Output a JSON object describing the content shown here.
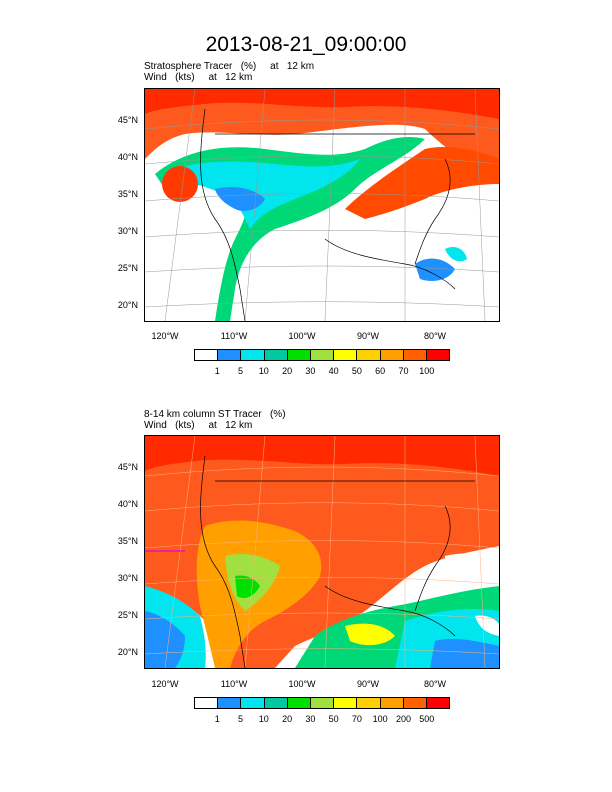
{
  "title": "2013-08-21_09:00:00",
  "panels": [
    {
      "subtitle_line1": "Stratosphere Tracer   (%)     at   12 km",
      "subtitle_line2": "Wind   (kts)     at   12 km",
      "lat_labels": [
        "45°N",
        "40°N",
        "35°N",
        "30°N",
        "25°N",
        "20°N"
      ],
      "lon_labels": [
        "120°W",
        "110°W",
        "100°W",
        "90°W",
        "80°W"
      ],
      "colorbar_labels": [
        "1",
        "5",
        "10",
        "20",
        "30",
        "40",
        "50",
        "60",
        "70",
        "100"
      ],
      "colorbar_colors": [
        "#ffffff",
        "#1e90ff",
        "#00e5ee",
        "#00c8a0",
        "#00e000",
        "#a0e040",
        "#ffff00",
        "#ffd000",
        "#ffa000",
        "#ff6000",
        "#ff0000"
      ]
    },
    {
      "subtitle_line1": "8-14 km column ST Tracer   (%)",
      "subtitle_line2": "Wind   (kts)     at   12 km",
      "lat_labels": [
        "45°N",
        "40°N",
        "35°N",
        "30°N",
        "25°N",
        "20°N"
      ],
      "lon_labels": [
        "120°W",
        "110°W",
        "100°W",
        "90°W",
        "80°W"
      ],
      "colorbar_labels": [
        "1",
        "5",
        "10",
        "20",
        "30",
        "50",
        "70",
        "100",
        "200",
        "500"
      ],
      "colorbar_colors": [
        "#ffffff",
        "#1e90ff",
        "#00e5ee",
        "#00c8a0",
        "#00e000",
        "#a0e040",
        "#ffff00",
        "#ffd000",
        "#ffa000",
        "#ff6000",
        "#ff0000"
      ]
    }
  ]
}
